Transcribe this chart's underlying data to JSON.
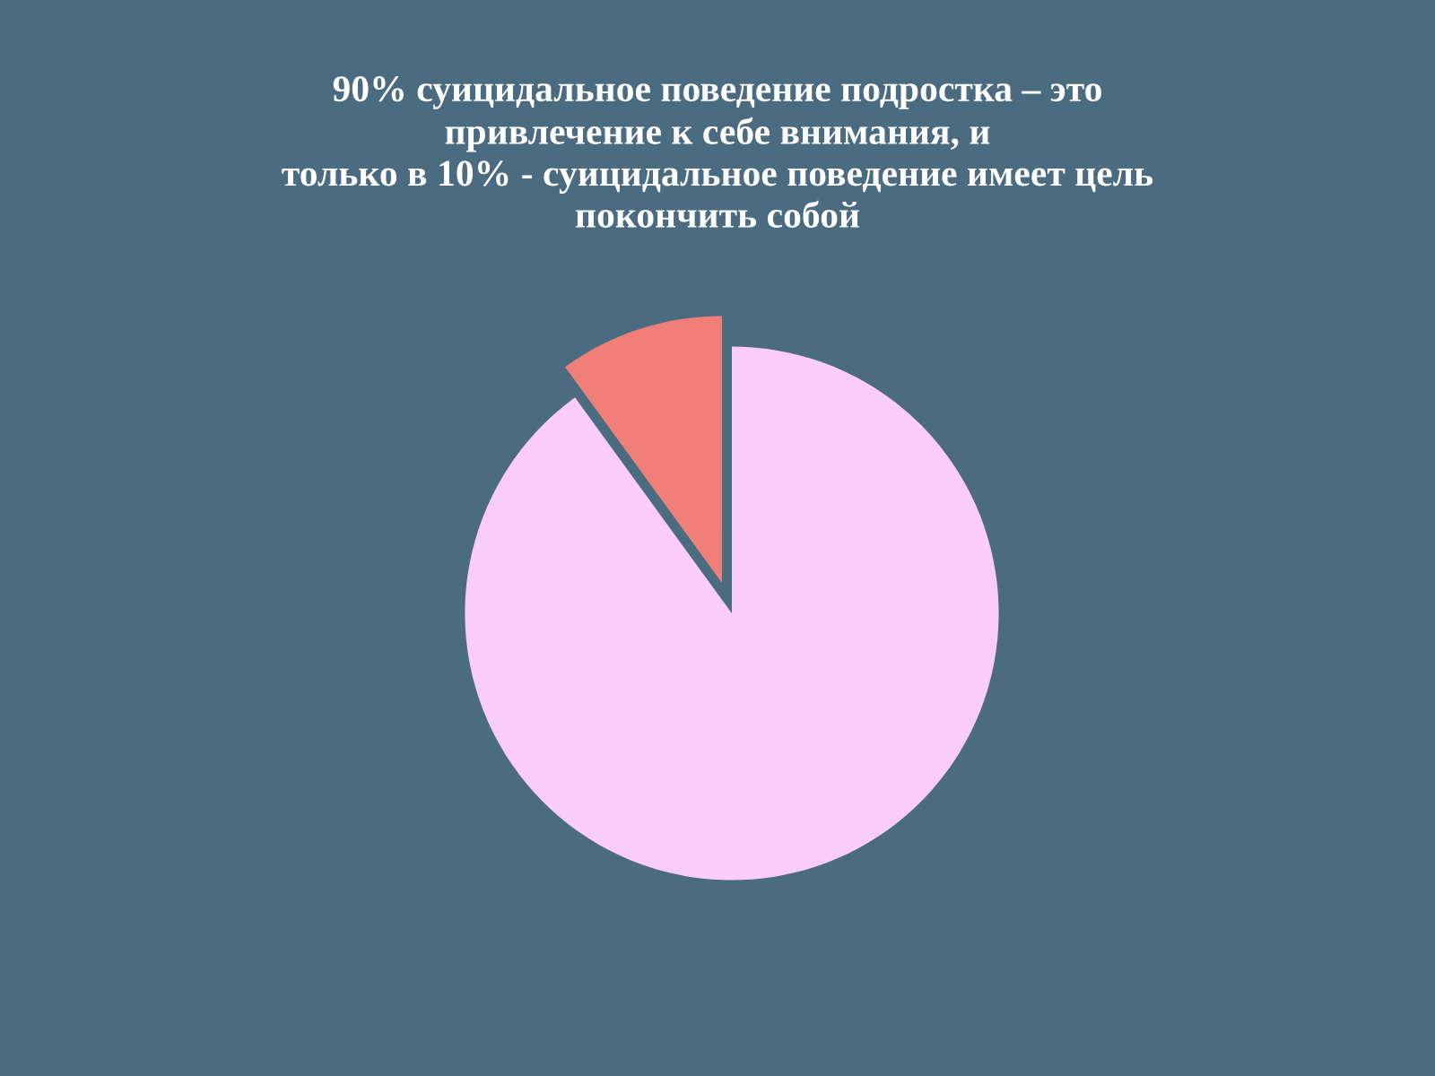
{
  "chart_data": {
    "type": "pie",
    "title": "90% суицидальное поведение подростка – это\nпривлечение к себе внимания, и\nтолько в 10% - суицидальное поведение имеет цель\nпокончить собой",
    "categories": [
      null,
      null
    ],
    "values": [
      90,
      10
    ],
    "colors": [
      "#f9ccf9",
      "#f07f7a"
    ],
    "legend": false
  }
}
